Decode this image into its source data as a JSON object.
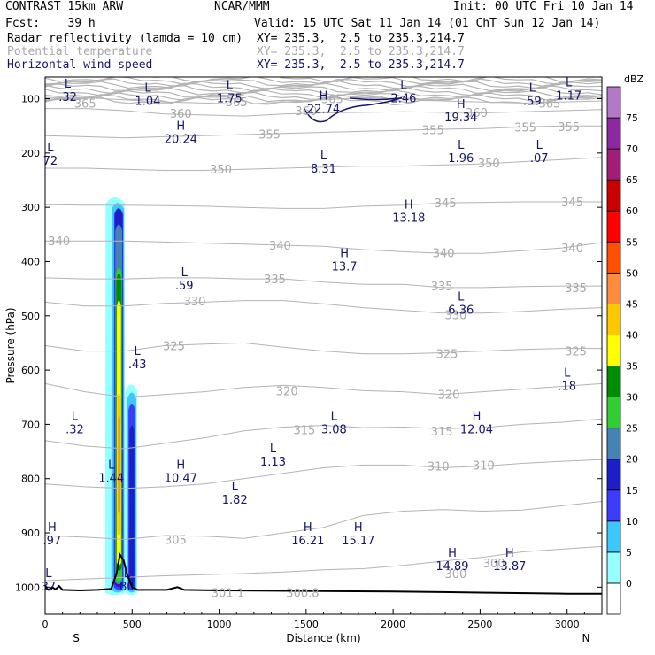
{
  "header": {
    "title": "CONTRAST 15km ARW",
    "center": "NCAR/MMM",
    "init": "Init: 00 UTC Fri 10 Jan 14",
    "fcst": "Fcst:    39 h",
    "valid": "Valid: 15 UTC Sat 11 Jan 14 (01 ChT Sun 12 Jan 14)",
    "fields": [
      {
        "name": "Radar reflectivity (lamda = 10 cm)",
        "xy": "XY= 235.3,  2.5 to 235.3,214.7",
        "color": "#000000"
      },
      {
        "name": "Potential temperature",
        "xy": "XY= 235.3,  2.5 to 235.3,214.7",
        "color": "#a8a8a8"
      },
      {
        "name": "Horizontal wind speed",
        "xy": "XY= 235.3,  2.5 to 235.3,214.7",
        "color": "#14146e"
      }
    ]
  },
  "chart_data": {
    "type": "cross-section contour",
    "xlabel": "Distance (km)",
    "ylabel": "Pressure (hPa)",
    "xlim": [
      0,
      3200
    ],
    "ylim": [
      1050,
      60
    ],
    "x_ticks": [
      0,
      500,
      1000,
      1500,
      2000,
      2500,
      3000
    ],
    "y_ticks": [
      100,
      200,
      300,
      400,
      500,
      600,
      700,
      800,
      900,
      1000
    ],
    "end_labels": {
      "left": "S",
      "right": "N"
    },
    "colorbar": {
      "unit": "dBZ",
      "levels": [
        0,
        5,
        10,
        15,
        20,
        25,
        30,
        35,
        40,
        45,
        50,
        55,
        60,
        65,
        70,
        75
      ],
      "colors": [
        "#ffffff",
        "#96ffff",
        "#3cc8ff",
        "#3c3cff",
        "#1e1ec8",
        "#4682b4",
        "#32cd32",
        "#008c00",
        "#ffff00",
        "#ffc800",
        "#ff8c3c",
        "#ff5000",
        "#ff0000",
        "#c80000",
        "#a01e78",
        "#8c28a0",
        "#b478c8"
      ]
    },
    "theta_contours": [
      {
        "value": 300,
        "p": [
          988,
          985,
          982,
          979,
          977,
          975,
          972,
          968,
          966,
          960,
          952,
          945,
          935,
          930,
          925
        ]
      },
      {
        "value": 305,
        "p": [
          905,
          908,
          912,
          905,
          906,
          910,
          900,
          890,
          868,
          860,
          857,
          860,
          858,
          850,
          842
        ]
      },
      {
        "value": 310,
        "p": [
          810,
          815,
          818,
          815,
          810,
          800,
          790,
          780,
          775,
          775,
          780,
          777,
          772,
          768,
          765
        ]
      },
      {
        "value": 315,
        "p": [
          730,
          740,
          745,
          735,
          725,
          712,
          705,
          702,
          706,
          705,
          708,
          706,
          700,
          696,
          690
        ]
      },
      {
        "value": 320,
        "p": [
          625,
          640,
          650,
          645,
          640,
          632,
          628,
          632,
          638,
          640,
          645,
          640,
          635,
          630,
          625
        ]
      },
      {
        "value": 325,
        "p": [
          555,
          565,
          565,
          555,
          552,
          550,
          558,
          565,
          570,
          570,
          568,
          565,
          562,
          560,
          560
        ]
      },
      {
        "value": 330,
        "p": [
          475,
          482,
          482,
          477,
          475,
          472,
          472,
          478,
          485,
          490,
          495,
          495,
          492,
          488,
          485
        ]
      },
      {
        "value": 335,
        "p": [
          430,
          432,
          432,
          430,
          430,
          432,
          432,
          438,
          442,
          442,
          448,
          448,
          446,
          445,
          445
        ]
      },
      {
        "value": 340,
        "p": [
          362,
          362,
          362,
          364,
          366,
          368,
          370,
          372,
          378,
          382,
          385,
          385,
          380,
          375,
          365
        ]
      },
      {
        "value": 345,
        "p": [
          295,
          296,
          296,
          297,
          298,
          300,
          302,
          302,
          298,
          296,
          292,
          291,
          290,
          290,
          290
        ]
      },
      {
        "value": 350,
        "p": [
          228,
          228,
          230,
          232,
          232,
          230,
          228,
          226,
          224,
          224,
          222,
          220,
          216,
          212,
          208
        ]
      },
      {
        "value": 355,
        "p": [
          168,
          170,
          172,
          170,
          168,
          166,
          164,
          162,
          160,
          158,
          156,
          155,
          152,
          150,
          150
        ]
      },
      {
        "value": 360,
        "p": [
          118,
          118,
          122,
          128,
          130,
          132,
          128,
          126,
          125,
          124,
          125,
          126,
          124,
          122,
          120
        ]
      },
      {
        "value": 365,
        "p": [
          98,
          98,
          102,
          106,
          108,
          110,
          106,
          102,
          98,
          100,
          104,
          106,
          108,
          106,
          104
        ]
      }
    ],
    "theta_labels": [
      {
        "value": "300",
        "x": 2360,
        "p": 975
      },
      {
        "value": "300",
        "x": 2580,
        "p": 955
      },
      {
        "value": "301.1",
        "x": 1050,
        "p": 1010
      },
      {
        "value": "300.8",
        "x": 1480,
        "p": 1010
      },
      {
        "value": "305",
        "x": 750,
        "p": 912
      },
      {
        "value": "310",
        "x": 2260,
        "p": 777
      },
      {
        "value": "310",
        "x": 2520,
        "p": 775
      },
      {
        "value": "315",
        "x": 1490,
        "p": 710
      },
      {
        "value": "315",
        "x": 2280,
        "p": 712
      },
      {
        "value": "320",
        "x": 1390,
        "p": 638
      },
      {
        "value": "320",
        "x": 2320,
        "p": 645
      },
      {
        "value": "325",
        "x": 740,
        "p": 555
      },
      {
        "value": "325",
        "x": 2310,
        "p": 570
      },
      {
        "value": "325",
        "x": 3050,
        "p": 565
      },
      {
        "value": "330",
        "x": 860,
        "p": 473
      },
      {
        "value": "330",
        "x": 2360,
        "p": 498
      },
      {
        "value": "335",
        "x": 1320,
        "p": 432
      },
      {
        "value": "335",
        "x": 2280,
        "p": 445
      },
      {
        "value": "335",
        "x": 3050,
        "p": 448
      },
      {
        "value": "340",
        "x": 80,
        "p": 362
      },
      {
        "value": "340",
        "x": 1350,
        "p": 370
      },
      {
        "value": "340",
        "x": 2290,
        "p": 384
      },
      {
        "value": "340",
        "x": 3030,
        "p": 375
      },
      {
        "value": "345",
        "x": 2300,
        "p": 292
      },
      {
        "value": "345",
        "x": 3030,
        "p": 290
      },
      {
        "value": "350",
        "x": 1010,
        "p": 230
      },
      {
        "value": "350",
        "x": 2550,
        "p": 218
      },
      {
        "value": "355",
        "x": 1290,
        "p": 165
      },
      {
        "value": "355",
        "x": 2230,
        "p": 157
      },
      {
        "value": "355",
        "x": 2760,
        "p": 152
      },
      {
        "value": "355",
        "x": 3010,
        "p": 151
      },
      {
        "value": "360",
        "x": 780,
        "p": 127
      },
      {
        "value": "360",
        "x": 1500,
        "p": 122
      },
      {
        "value": "360",
        "x": 2480,
        "p": 125
      },
      {
        "value": "365",
        "x": 230,
        "p": 108
      },
      {
        "value": "365",
        "x": 1100,
        "p": 106
      },
      {
        "value": "365",
        "x": 1650,
        "p": 100
      },
      {
        "value": "365",
        "x": 2900,
        "p": 108
      }
    ],
    "wind_extrema": [
      {
        "type": "L",
        "value": ".32",
        "x": 130,
        "p": 88
      },
      {
        "type": "L",
        "value": "1.04",
        "x": 590,
        "p": 95
      },
      {
        "type": "L",
        "value": "1.75",
        "x": 1060,
        "p": 90
      },
      {
        "type": "H",
        "value": "22.74",
        "x": 1600,
        "p": 110
      },
      {
        "type": "L",
        "value": "2.46",
        "x": 2060,
        "p": 90
      },
      {
        "type": "H",
        "value": "19.34",
        "x": 2390,
        "p": 125
      },
      {
        "type": "L",
        "value": ".59",
        "x": 2800,
        "p": 95
      },
      {
        "type": "L",
        "value": "1.17",
        "x": 3010,
        "p": 85
      },
      {
        "type": "H",
        "value": "20.24",
        "x": 780,
        "p": 165
      },
      {
        "type": "L",
        "value": "8.31",
        "x": 1600,
        "p": 220
      },
      {
        "type": "L",
        "value": "1.96",
        "x": 2390,
        "p": 200
      },
      {
        "type": "L",
        "value": ".07",
        "x": 2840,
        "p": 200
      },
      {
        "type": "L",
        "value": "72",
        "x": 30,
        "p": 205
      },
      {
        "type": "H",
        "value": "13.18",
        "x": 2090,
        "p": 310
      },
      {
        "type": "H",
        "value": "13.7",
        "x": 1720,
        "p": 400
      },
      {
        "type": "L",
        "value": ".59",
        "x": 800,
        "p": 435
      },
      {
        "type": "L",
        "value": "6.36",
        "x": 2390,
        "p": 480
      },
      {
        "type": "L",
        "value": ".43",
        "x": 530,
        "p": 580
      },
      {
        "type": "L",
        "value": ".18",
        "x": 3000,
        "p": 620
      },
      {
        "type": "L",
        "value": ".32",
        "x": 170,
        "p": 700
      },
      {
        "type": "L",
        "value": "3.08",
        "x": 1660,
        "p": 700
      },
      {
        "type": "H",
        "value": "12.04",
        "x": 2480,
        "p": 700
      },
      {
        "type": "L",
        "value": "1.13",
        "x": 1310,
        "p": 760
      },
      {
        "type": "L",
        "value": "1.44",
        "x": 380,
        "p": 790
      },
      {
        "type": "H",
        "value": "10.47",
        "x": 780,
        "p": 790
      },
      {
        "type": "L",
        "value": "1.82",
        "x": 1090,
        "p": 830
      },
      {
        "type": "H",
        "value": ".97",
        "x": 40,
        "p": 905
      },
      {
        "type": "H",
        "value": "16.21",
        "x": 1510,
        "p": 905
      },
      {
        "type": "H",
        "value": "15.17",
        "x": 1800,
        "p": 905
      },
      {
        "type": "H",
        "value": "14.89",
        "x": 2340,
        "p": 952
      },
      {
        "type": "H",
        "value": "13.87",
        "x": 2670,
        "p": 952
      },
      {
        "type": "L",
        "value": "37",
        "x": 20,
        "p": 990
      },
      {
        "type": "L",
        "value": "80",
        "x": 470,
        "p": 990
      }
    ]
  }
}
